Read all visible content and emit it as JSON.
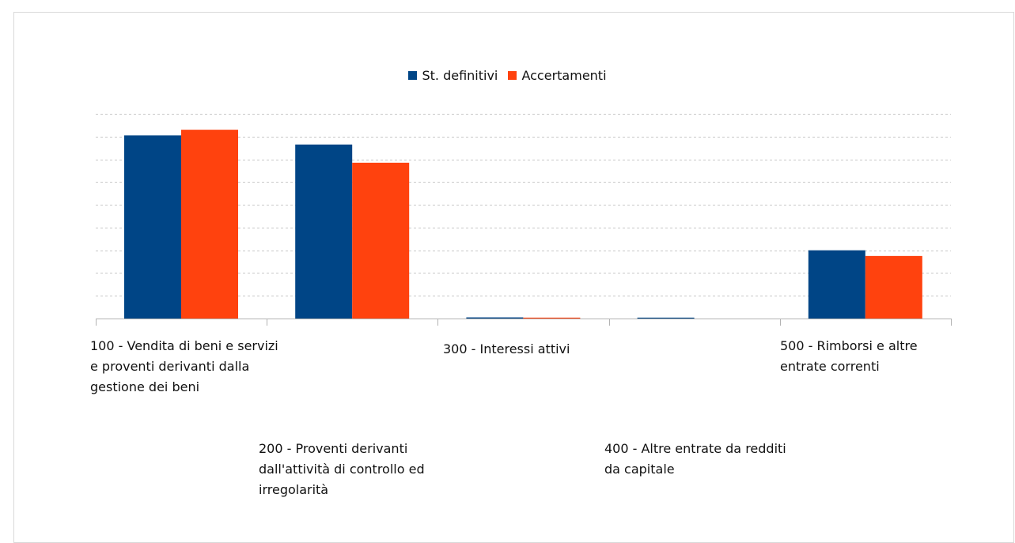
{
  "chart_data": {
    "type": "bar",
    "title": "",
    "xlabel": "",
    "ylabel": "",
    "ylim": [
      0,
      9
    ],
    "gridlines": [
      1,
      2,
      3,
      4,
      5,
      6,
      7,
      8,
      9
    ],
    "grid": true,
    "legend_position": "top",
    "categories": [
      "100 - Vendita di beni e servizi e proventi derivanti dalla gestione dei beni",
      "200 - Proventi derivanti dall'attività di controllo ed irregolarità",
      "300 - Interessi attivi",
      "400 - Altre entrate da redditi da capitale",
      "500 - Rimborsi e altre entrate correnti"
    ],
    "series": [
      {
        "name": "St. definitivi",
        "color": "#004586",
        "values": [
          8.05,
          7.65,
          0.05,
          0.04,
          3.0
        ]
      },
      {
        "name": "Accertamenti",
        "color": "#ff420e",
        "values": [
          8.3,
          6.85,
          0.04,
          0.0,
          2.75
        ]
      }
    ]
  }
}
